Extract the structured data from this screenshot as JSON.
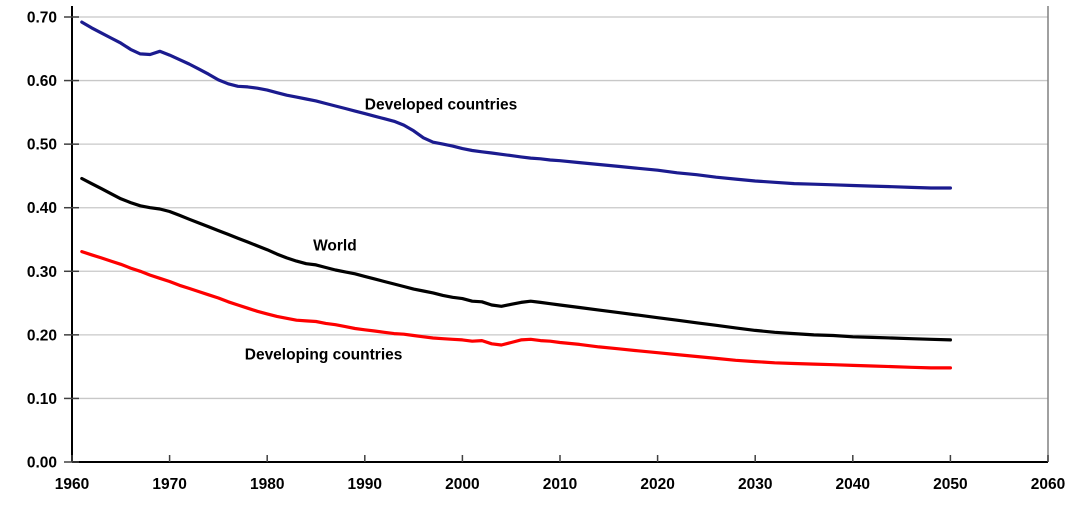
{
  "chart_data": {
    "type": "line",
    "title": "",
    "xlabel": "",
    "ylabel": "",
    "xlim": [
      1960,
      2060
    ],
    "ylim": [
      0.0,
      0.7
    ],
    "xticks": [
      1960,
      1970,
      1980,
      1990,
      2000,
      2010,
      2020,
      2030,
      2040,
      2050,
      2060
    ],
    "ytick_values": [
      0.0,
      0.1,
      0.2,
      0.3,
      0.4,
      0.5,
      0.6,
      0.7
    ],
    "ytick_labels": [
      "0.00",
      "0.10",
      "0.20",
      "0.30",
      "0.40",
      "0.50",
      "0.60",
      "0.70"
    ],
    "grid": "horizontal",
    "legend_position": "inline-labels",
    "series": [
      {
        "name": "Developed countries",
        "color": "#1b1b8f",
        "points": [
          [
            1961,
            0.692
          ],
          [
            1962,
            0.683
          ],
          [
            1963,
            0.675
          ],
          [
            1964,
            0.667
          ],
          [
            1965,
            0.659
          ],
          [
            1966,
            0.649
          ],
          [
            1967,
            0.642
          ],
          [
            1968,
            0.641
          ],
          [
            1969,
            0.646
          ],
          [
            1970,
            0.64
          ],
          [
            1971,
            0.633
          ],
          [
            1972,
            0.626
          ],
          [
            1973,
            0.618
          ],
          [
            1974,
            0.61
          ],
          [
            1975,
            0.601
          ],
          [
            1976,
            0.595
          ],
          [
            1977,
            0.591
          ],
          [
            1978,
            0.59
          ],
          [
            1979,
            0.588
          ],
          [
            1980,
            0.585
          ],
          [
            1981,
            0.581
          ],
          [
            1982,
            0.577
          ],
          [
            1983,
            0.574
          ],
          [
            1984,
            0.571
          ],
          [
            1985,
            0.568
          ],
          [
            1986,
            0.564
          ],
          [
            1987,
            0.56
          ],
          [
            1988,
            0.556
          ],
          [
            1989,
            0.552
          ],
          [
            1990,
            0.548
          ],
          [
            1991,
            0.544
          ],
          [
            1992,
            0.54
          ],
          [
            1993,
            0.536
          ],
          [
            1994,
            0.53
          ],
          [
            1995,
            0.521
          ],
          [
            1996,
            0.51
          ],
          [
            1997,
            0.503
          ],
          [
            1998,
            0.5
          ],
          [
            1999,
            0.497
          ],
          [
            2000,
            0.493
          ],
          [
            2001,
            0.49
          ],
          [
            2002,
            0.488
          ],
          [
            2003,
            0.486
          ],
          [
            2004,
            0.484
          ],
          [
            2005,
            0.482
          ],
          [
            2006,
            0.48
          ],
          [
            2007,
            0.478
          ],
          [
            2008,
            0.477
          ],
          [
            2009,
            0.475
          ],
          [
            2010,
            0.474
          ],
          [
            2012,
            0.471
          ],
          [
            2014,
            0.468
          ],
          [
            2016,
            0.465
          ],
          [
            2018,
            0.462
          ],
          [
            2020,
            0.459
          ],
          [
            2022,
            0.455
          ],
          [
            2024,
            0.452
          ],
          [
            2026,
            0.448
          ],
          [
            2028,
            0.445
          ],
          [
            2030,
            0.442
          ],
          [
            2032,
            0.44
          ],
          [
            2034,
            0.438
          ],
          [
            2036,
            0.437
          ],
          [
            2038,
            0.436
          ],
          [
            2040,
            0.435
          ],
          [
            2042,
            0.434
          ],
          [
            2044,
            0.433
          ],
          [
            2046,
            0.432
          ],
          [
            2048,
            0.431
          ],
          [
            2050,
            0.431
          ]
        ]
      },
      {
        "name": "World",
        "color": "#000000",
        "points": [
          [
            1961,
            0.446
          ],
          [
            1962,
            0.438
          ],
          [
            1963,
            0.43
          ],
          [
            1964,
            0.422
          ],
          [
            1965,
            0.414
          ],
          [
            1966,
            0.408
          ],
          [
            1967,
            0.403
          ],
          [
            1968,
            0.4
          ],
          [
            1969,
            0.398
          ],
          [
            1970,
            0.394
          ],
          [
            1971,
            0.388
          ],
          [
            1972,
            0.382
          ],
          [
            1973,
            0.376
          ],
          [
            1974,
            0.37
          ],
          [
            1975,
            0.364
          ],
          [
            1976,
            0.358
          ],
          [
            1977,
            0.352
          ],
          [
            1978,
            0.346
          ],
          [
            1979,
            0.34
          ],
          [
            1980,
            0.334
          ],
          [
            1981,
            0.327
          ],
          [
            1982,
            0.321
          ],
          [
            1983,
            0.316
          ],
          [
            1984,
            0.312
          ],
          [
            1985,
            0.31
          ],
          [
            1986,
            0.306
          ],
          [
            1987,
            0.302
          ],
          [
            1988,
            0.299
          ],
          [
            1989,
            0.296
          ],
          [
            1990,
            0.292
          ],
          [
            1991,
            0.288
          ],
          [
            1992,
            0.284
          ],
          [
            1993,
            0.28
          ],
          [
            1994,
            0.276
          ],
          [
            1995,
            0.272
          ],
          [
            1996,
            0.269
          ],
          [
            1997,
            0.266
          ],
          [
            1998,
            0.262
          ],
          [
            1999,
            0.259
          ],
          [
            2000,
            0.257
          ],
          [
            2001,
            0.253
          ],
          [
            2002,
            0.252
          ],
          [
            2003,
            0.247
          ],
          [
            2004,
            0.245
          ],
          [
            2005,
            0.248
          ],
          [
            2006,
            0.251
          ],
          [
            2007,
            0.253
          ],
          [
            2008,
            0.251
          ],
          [
            2009,
            0.249
          ],
          [
            2010,
            0.247
          ],
          [
            2012,
            0.243
          ],
          [
            2014,
            0.239
          ],
          [
            2016,
            0.235
          ],
          [
            2018,
            0.231
          ],
          [
            2020,
            0.227
          ],
          [
            2022,
            0.223
          ],
          [
            2024,
            0.219
          ],
          [
            2026,
            0.215
          ],
          [
            2028,
            0.211
          ],
          [
            2030,
            0.207
          ],
          [
            2032,
            0.204
          ],
          [
            2034,
            0.202
          ],
          [
            2036,
            0.2
          ],
          [
            2038,
            0.199
          ],
          [
            2040,
            0.197
          ],
          [
            2042,
            0.196
          ],
          [
            2044,
            0.195
          ],
          [
            2046,
            0.194
          ],
          [
            2048,
            0.193
          ],
          [
            2050,
            0.192
          ]
        ]
      },
      {
        "name": "Developing countries",
        "color": "#fe0000",
        "points": [
          [
            1961,
            0.331
          ],
          [
            1962,
            0.326
          ],
          [
            1963,
            0.321
          ],
          [
            1964,
            0.316
          ],
          [
            1965,
            0.311
          ],
          [
            1966,
            0.305
          ],
          [
            1967,
            0.3
          ],
          [
            1968,
            0.294
          ],
          [
            1969,
            0.289
          ],
          [
            1970,
            0.284
          ],
          [
            1971,
            0.278
          ],
          [
            1972,
            0.273
          ],
          [
            1973,
            0.268
          ],
          [
            1974,
            0.263
          ],
          [
            1975,
            0.258
          ],
          [
            1976,
            0.252
          ],
          [
            1977,
            0.247
          ],
          [
            1978,
            0.242
          ],
          [
            1979,
            0.237
          ],
          [
            1980,
            0.233
          ],
          [
            1981,
            0.229
          ],
          [
            1982,
            0.226
          ],
          [
            1983,
            0.223
          ],
          [
            1984,
            0.222
          ],
          [
            1985,
            0.221
          ],
          [
            1986,
            0.218
          ],
          [
            1987,
            0.216
          ],
          [
            1988,
            0.213
          ],
          [
            1989,
            0.21
          ],
          [
            1990,
            0.208
          ],
          [
            1991,
            0.206
          ],
          [
            1992,
            0.204
          ],
          [
            1993,
            0.202
          ],
          [
            1994,
            0.201
          ],
          [
            1995,
            0.199
          ],
          [
            1996,
            0.197
          ],
          [
            1997,
            0.195
          ],
          [
            1998,
            0.194
          ],
          [
            1999,
            0.193
          ],
          [
            2000,
            0.192
          ],
          [
            2001,
            0.19
          ],
          [
            2002,
            0.191
          ],
          [
            2003,
            0.186
          ],
          [
            2004,
            0.184
          ],
          [
            2005,
            0.188
          ],
          [
            2006,
            0.192
          ],
          [
            2007,
            0.193
          ],
          [
            2008,
            0.191
          ],
          [
            2009,
            0.19
          ],
          [
            2010,
            0.188
          ],
          [
            2012,
            0.185
          ],
          [
            2014,
            0.181
          ],
          [
            2016,
            0.178
          ],
          [
            2018,
            0.175
          ],
          [
            2020,
            0.172
          ],
          [
            2022,
            0.169
          ],
          [
            2024,
            0.166
          ],
          [
            2026,
            0.163
          ],
          [
            2028,
            0.16
          ],
          [
            2030,
            0.158
          ],
          [
            2032,
            0.156
          ],
          [
            2034,
            0.155
          ],
          [
            2036,
            0.154
          ],
          [
            2038,
            0.153
          ],
          [
            2040,
            0.152
          ],
          [
            2042,
            0.151
          ],
          [
            2044,
            0.15
          ],
          [
            2046,
            0.149
          ],
          [
            2048,
            0.148
          ],
          [
            2050,
            0.148
          ]
        ]
      }
    ],
    "annotations": [
      {
        "text": "Developed countries",
        "x": 1990.0,
        "y": 0.563
      },
      {
        "text": "World",
        "x": 1984.7,
        "y": 0.341
      },
      {
        "text": "Developing countries",
        "x": 1977.7,
        "y": 0.17
      }
    ]
  },
  "colors": {
    "background": "#ffffff",
    "gridline": "#c8c8c8",
    "axis": "#000000",
    "tick": "#404040",
    "right_border": "#808080",
    "text": "#000000"
  }
}
